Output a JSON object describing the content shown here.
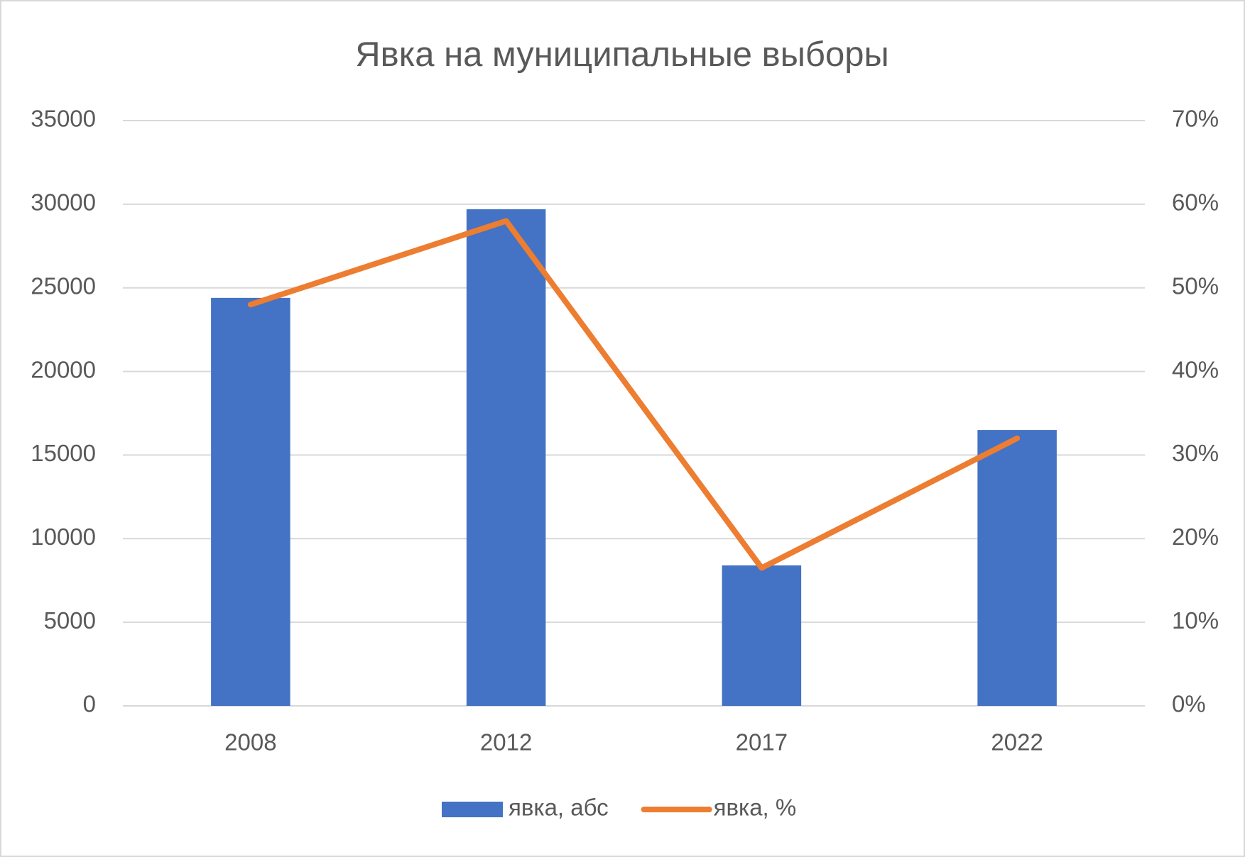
{
  "chart_data": {
    "type": "bar_line",
    "title": "Явка на муниципальные выборы",
    "categories": [
      "2008",
      "2012",
      "2017",
      "2022"
    ],
    "series": [
      {
        "name": "явка, абс",
        "type": "bar",
        "color": "#4472c4",
        "values": [
          24400,
          29700,
          8400,
          16500
        ]
      },
      {
        "name": "явка, %",
        "type": "line",
        "axis": "y2",
        "color": "#ed7d31",
        "values": [
          48,
          58,
          16.5,
          32
        ]
      }
    ],
    "ylim": [
      0,
      35000
    ],
    "yticks": [
      0,
      5000,
      10000,
      15000,
      20000,
      25000,
      30000,
      35000
    ],
    "y2lim": [
      0,
      70
    ],
    "y2ticks": [
      {
        "value": 0,
        "label": "0%"
      },
      {
        "value": 10,
        "label": "10%"
      },
      {
        "value": 20,
        "label": "20%"
      },
      {
        "value": 30,
        "label": "30%"
      },
      {
        "value": 40,
        "label": "40%"
      },
      {
        "value": 50,
        "label": "50%"
      },
      {
        "value": 60,
        "label": "60%"
      },
      {
        "value": 70,
        "label": "70%"
      }
    ],
    "grid": true,
    "legend": "bottom"
  }
}
